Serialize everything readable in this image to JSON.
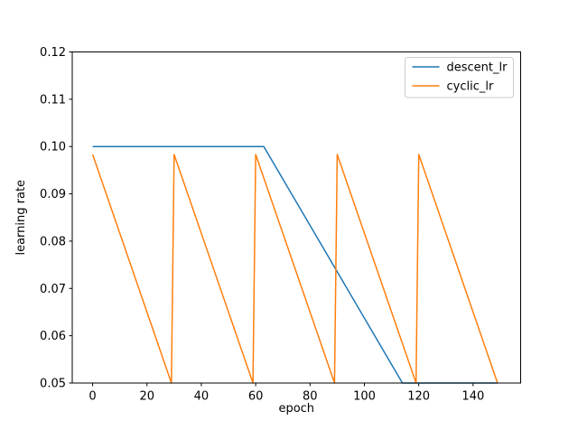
{
  "figure": {
    "background": "#ffffff"
  },
  "chart_data": {
    "type": "line",
    "title": "",
    "xlabel": "epoch",
    "ylabel": "learning rate",
    "xlim": [
      -7.5,
      157.5
    ],
    "ylim": [
      0.05,
      0.12
    ],
    "xticks": [
      0,
      20,
      40,
      60,
      80,
      100,
      120,
      140
    ],
    "yticks": [
      0.05,
      0.06,
      0.07,
      0.08,
      0.09,
      0.1,
      0.11,
      0.12
    ],
    "grid": false,
    "axis_color": "#000000",
    "legend": {
      "position": "upper right",
      "border_color": "#cccccc",
      "background": "#ffffff",
      "entries": [
        "descent_lr",
        "cyclic_lr"
      ]
    },
    "series": [
      {
        "name": "descent_lr",
        "color": "#1f77b4",
        "points": [
          [
            0,
            0.1
          ],
          [
            63,
            0.1
          ],
          [
            114,
            0.05
          ],
          [
            149,
            0.05
          ]
        ]
      },
      {
        "name": "cyclic_lr",
        "color": "#ff7f0e",
        "points": [
          [
            0,
            0.09833
          ],
          [
            29,
            0.05
          ],
          [
            30,
            0.09833
          ],
          [
            59,
            0.05
          ],
          [
            60,
            0.09833
          ],
          [
            89,
            0.05
          ],
          [
            90,
            0.09833
          ],
          [
            119,
            0.05
          ],
          [
            120,
            0.09833
          ],
          [
            149,
            0.05
          ]
        ]
      }
    ]
  }
}
